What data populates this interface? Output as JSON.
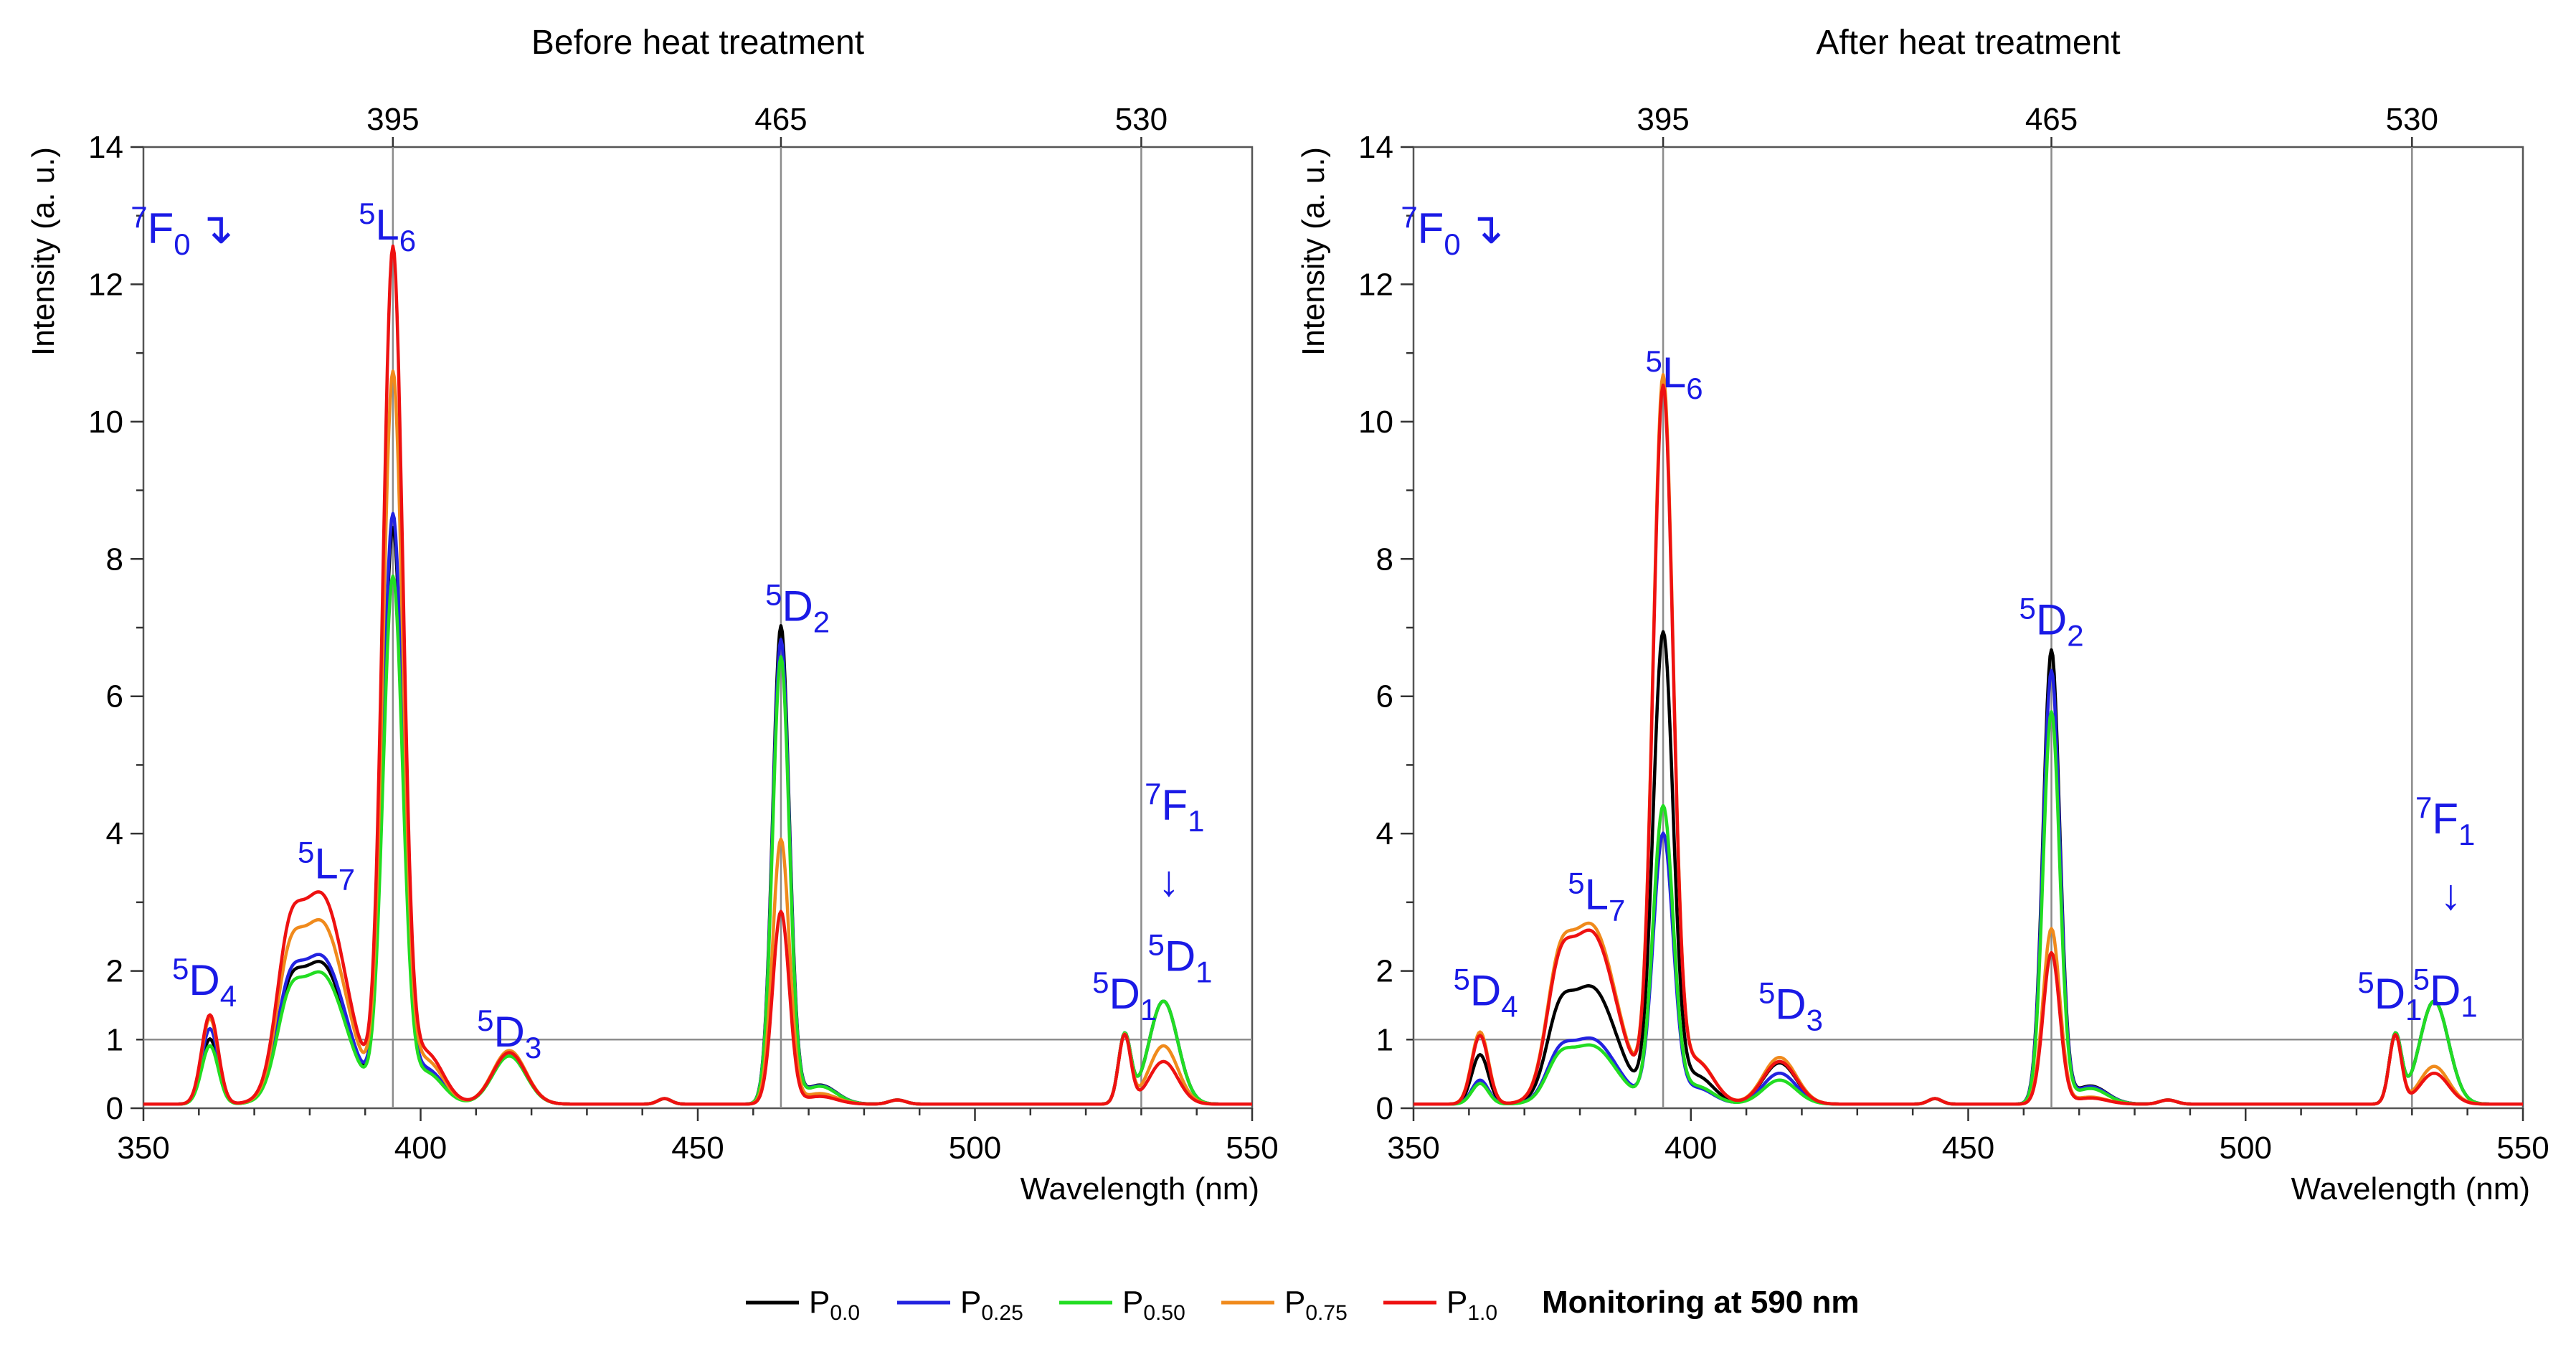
{
  "colors": {
    "P0.0": "#000000",
    "P0.25": "#2323e0",
    "P0.50": "#22dd22",
    "P0.75": "#f08a1c",
    "P1.0": "#ee1111",
    "annotation": "#1a1ae6"
  },
  "legend": {
    "entries": [
      {
        "base": "P",
        "sub": "0.0",
        "color": "#000000"
      },
      {
        "base": "P",
        "sub": "0.25",
        "color": "#2323e0"
      },
      {
        "base": "P",
        "sub": "0.50",
        "color": "#22dd22"
      },
      {
        "base": "P",
        "sub": "0.75",
        "color": "#f08a1c"
      },
      {
        "base": "P",
        "sub": "1.0",
        "color": "#ee1111"
      }
    ],
    "note": "Monitoring at 590 nm"
  },
  "chart_data": [
    {
      "type": "line",
      "title": "Before heat treatment",
      "xlabel": "Wavelength (nm)",
      "ylabel": "Intensity (a. u.)",
      "xlim": [
        350,
        550
      ],
      "ylim": [
        0,
        14
      ],
      "xticks": [
        350,
        400,
        450,
        500,
        550
      ],
      "yticks": [
        0,
        1,
        2,
        4,
        6,
        8,
        10,
        12,
        14
      ],
      "top_ticks": [
        395,
        465,
        530
      ],
      "reference_lines": {
        "vertical": [
          395,
          465,
          530
        ],
        "horizontal": [
          1
        ]
      },
      "peak_positions": [
        362,
        382,
        395,
        416,
        465,
        527,
        534
      ],
      "series": [
        {
          "name": "P0.0",
          "values": [
            0.95,
            2.05,
            8.3,
            0.75,
            6.95,
            1.0,
            1.5
          ]
        },
        {
          "name": "P0.25",
          "values": [
            1.1,
            2.15,
            8.5,
            0.75,
            6.75,
            1.0,
            1.5
          ]
        },
        {
          "name": "P0.50",
          "values": [
            0.85,
            1.9,
            7.6,
            0.7,
            6.5,
            1.0,
            1.5
          ]
        },
        {
          "name": "P0.75",
          "values": [
            1.25,
            2.65,
            10.55,
            0.78,
            3.85,
            1.0,
            0.85
          ]
        },
        {
          "name": "P1.0",
          "values": [
            1.3,
            3.05,
            12.35,
            0.75,
            2.8,
            1.0,
            0.62
          ]
        }
      ],
      "annotations": [
        {
          "sup": "7",
          "base": "F",
          "sub": "0",
          "suffix": "↴"
        },
        {
          "sup": "5",
          "base": "L",
          "sub": "6"
        },
        {
          "sup": "5",
          "base": "D",
          "sub": "2"
        },
        {
          "sup": "5",
          "base": "L",
          "sub": "7"
        },
        {
          "sup": "5",
          "base": "D",
          "sub": "4"
        },
        {
          "sup": "5",
          "base": "D",
          "sub": "3"
        },
        {
          "sup": "5",
          "base": "D",
          "sub": "1"
        },
        {
          "sup": "7",
          "base": "F",
          "sub": "1"
        },
        {
          "sup": "",
          "base": "↓",
          "sub": ""
        },
        {
          "sup": "5",
          "base": "D",
          "sub": "1"
        }
      ]
    },
    {
      "type": "line",
      "title": "After heat treatment",
      "xlabel": "Wavelength (nm)",
      "ylabel": "Intensity (a. u.)",
      "xlim": [
        350,
        550
      ],
      "ylim": [
        0,
        14
      ],
      "xticks": [
        350,
        400,
        450,
        500,
        550
      ],
      "yticks": [
        0,
        1,
        2,
        4,
        6,
        8,
        10,
        12,
        14
      ],
      "top_ticks": [
        395,
        465,
        530
      ],
      "reference_lines": {
        "vertical": [
          395,
          465,
          530
        ],
        "horizontal": [
          1
        ]
      },
      "peak_positions": [
        362,
        382,
        395,
        416,
        465,
        527,
        534
      ],
      "series": [
        {
          "name": "P0.0",
          "values": [
            0.72,
            1.7,
            6.8,
            0.6,
            6.6,
            1.0,
            1.5
          ]
        },
        {
          "name": "P0.25",
          "values": [
            0.35,
            0.95,
            3.9,
            0.45,
            6.3,
            1.0,
            1.5
          ]
        },
        {
          "name": "P0.50",
          "values": [
            0.3,
            0.85,
            4.3,
            0.35,
            5.7,
            1.0,
            1.5
          ]
        },
        {
          "name": "P0.75",
          "values": [
            1.05,
            2.6,
            10.5,
            0.68,
            2.55,
            1.0,
            0.55
          ]
        },
        {
          "name": "P1.0",
          "values": [
            1.0,
            2.5,
            10.35,
            0.62,
            2.2,
            1.0,
            0.45
          ]
        }
      ],
      "annotations": [
        {
          "sup": "7",
          "base": "F",
          "sub": "0",
          "suffix": "↴"
        },
        {
          "sup": "5",
          "base": "L",
          "sub": "6"
        },
        {
          "sup": "5",
          "base": "D",
          "sub": "2"
        },
        {
          "sup": "5",
          "base": "L",
          "sub": "7"
        },
        {
          "sup": "5",
          "base": "D",
          "sub": "4"
        },
        {
          "sup": "5",
          "base": "D",
          "sub": "3"
        },
        {
          "sup": "5",
          "base": "D",
          "sub": "1"
        },
        {
          "sup": "7",
          "base": "F",
          "sub": "1"
        },
        {
          "sup": "",
          "base": "↓",
          "sub": ""
        },
        {
          "sup": "5",
          "base": "D",
          "sub": "1"
        }
      ]
    }
  ]
}
